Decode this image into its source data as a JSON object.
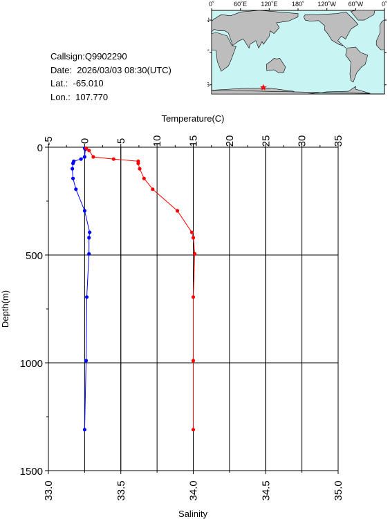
{
  "station": {
    "callsign": "Callsign:Q9902290",
    "date": "Date:  2026/03/03 08:30(UTC)",
    "lat": "Lat.:  -65.010",
    "lon": "Lon.:  107.770"
  },
  "map": {
    "lon_ticks": [
      "0˚",
      "60˚E",
      "120˚E",
      "180˚",
      "120˚W",
      "60˚W",
      "0˚"
    ],
    "lat_ticks": [
      "60˚N",
      "0˚",
      "60˚S"
    ],
    "ocean_color": "#c8f4f4",
    "land_color": "#bdbdbd",
    "marker_color": "#ff0000",
    "marker": {
      "lat": -65.01,
      "lon": 107.77
    }
  },
  "chart_data": {
    "type": "line",
    "title": "",
    "top_axis": {
      "label": "Temperature(C)",
      "min": -5,
      "max": 35,
      "ticks": [
        "-5",
        "0",
        "5",
        "10",
        "15",
        "20",
        "25",
        "30",
        "35"
      ]
    },
    "bottom_axis": {
      "label": "Salinity",
      "min": 33.0,
      "max": 35.0,
      "ticks": [
        "33.0",
        "33.5",
        "34.0",
        "34.5",
        "35.0"
      ]
    },
    "y_axis": {
      "label": "Depth(m)",
      "min": 0,
      "max": 1500,
      "inverted": true,
      "ticks": [
        "0",
        "500",
        "1000",
        "1500"
      ]
    },
    "grid": true,
    "series": [
      {
        "quantity": "temperature",
        "axis": "top",
        "color": "#0000ff",
        "points": [
          {
            "depth": 5,
            "value": 0.0
          },
          {
            "depth": 10,
            "value": 0.1
          },
          {
            "depth": 45,
            "value": 0.0
          },
          {
            "depth": 55,
            "value": -0.5
          },
          {
            "depth": 65,
            "value": -1.5
          },
          {
            "depth": 75,
            "value": -1.6
          },
          {
            "depth": 100,
            "value": -1.7
          },
          {
            "depth": 145,
            "value": -1.6
          },
          {
            "depth": 195,
            "value": -1.2
          },
          {
            "depth": 295,
            "value": 0.0
          },
          {
            "depth": 395,
            "value": 0.7
          },
          {
            "depth": 420,
            "value": 0.6
          },
          {
            "depth": 495,
            "value": 0.6
          },
          {
            "depth": 695,
            "value": 0.3
          },
          {
            "depth": 990,
            "value": 0.2
          },
          {
            "depth": 1310,
            "value": 0.0
          }
        ]
      },
      {
        "quantity": "salinity",
        "axis": "bottom",
        "color": "#ff0000",
        "points": [
          {
            "depth": 5,
            "value": 33.26
          },
          {
            "depth": 15,
            "value": 33.28
          },
          {
            "depth": 45,
            "value": 33.31
          },
          {
            "depth": 55,
            "value": 33.45
          },
          {
            "depth": 65,
            "value": 33.62
          },
          {
            "depth": 75,
            "value": 33.62
          },
          {
            "depth": 100,
            "value": 33.63
          },
          {
            "depth": 145,
            "value": 33.66
          },
          {
            "depth": 195,
            "value": 33.72
          },
          {
            "depth": 295,
            "value": 33.89
          },
          {
            "depth": 395,
            "value": 33.99
          },
          {
            "depth": 420,
            "value": 34.0
          },
          {
            "depth": 495,
            "value": 34.01
          },
          {
            "depth": 695,
            "value": 34.0
          },
          {
            "depth": 990,
            "value": 34.0
          },
          {
            "depth": 1310,
            "value": 34.0
          }
        ]
      }
    ]
  }
}
